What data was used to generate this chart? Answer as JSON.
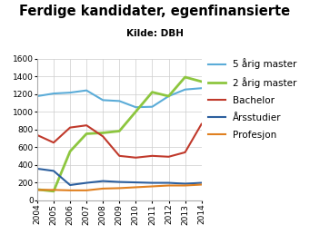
{
  "title": "Ferdige kandidater, egenfinansierte",
  "subtitle": "Kilde: DBH",
  "years": [
    2004,
    2005,
    2006,
    2007,
    2008,
    2009,
    2010,
    2011,
    2012,
    2013,
    2014
  ],
  "series_order": [
    "5 årig master",
    "2 årig master",
    "Bachelor",
    "Årsstudier",
    "Profesjon"
  ],
  "series_values": {
    "5 årig master": [
      1175,
      1205,
      1215,
      1240,
      1130,
      1120,
      1050,
      1055,
      1175,
      1250,
      1265
    ],
    "2 årig master": [
      120,
      100,
      550,
      750,
      760,
      780,
      1000,
      1220,
      1175,
      1390,
      1340
    ],
    "Bachelor": [
      735,
      650,
      820,
      845,
      720,
      500,
      480,
      500,
      490,
      540,
      860
    ],
    "Årsstudier": [
      355,
      330,
      170,
      195,
      215,
      205,
      200,
      195,
      195,
      185,
      195
    ],
    "Profesjon": [
      115,
      115,
      110,
      110,
      130,
      135,
      145,
      155,
      165,
      165,
      175
    ]
  },
  "series_colors": {
    "5 årig master": "#5bacd8",
    "2 årig master": "#8dc63f",
    "Bachelor": "#c0392b",
    "Årsstudier": "#2c5f9e",
    "Profesjon": "#e08020"
  },
  "series_linewidths": {
    "5 årig master": 1.5,
    "2 årig master": 2.0,
    "Bachelor": 1.5,
    "Årsstudier": 1.5,
    "Profesjon": 1.5
  },
  "ylim": [
    0,
    1600
  ],
  "yticks": [
    0,
    200,
    400,
    600,
    800,
    1000,
    1200,
    1400,
    1600
  ],
  "background_color": "#ffffff",
  "grid_color": "#cccccc",
  "title_fontsize": 10.5,
  "subtitle_fontsize": 7.5,
  "tick_fontsize": 6.5,
  "legend_fontsize": 7.5
}
